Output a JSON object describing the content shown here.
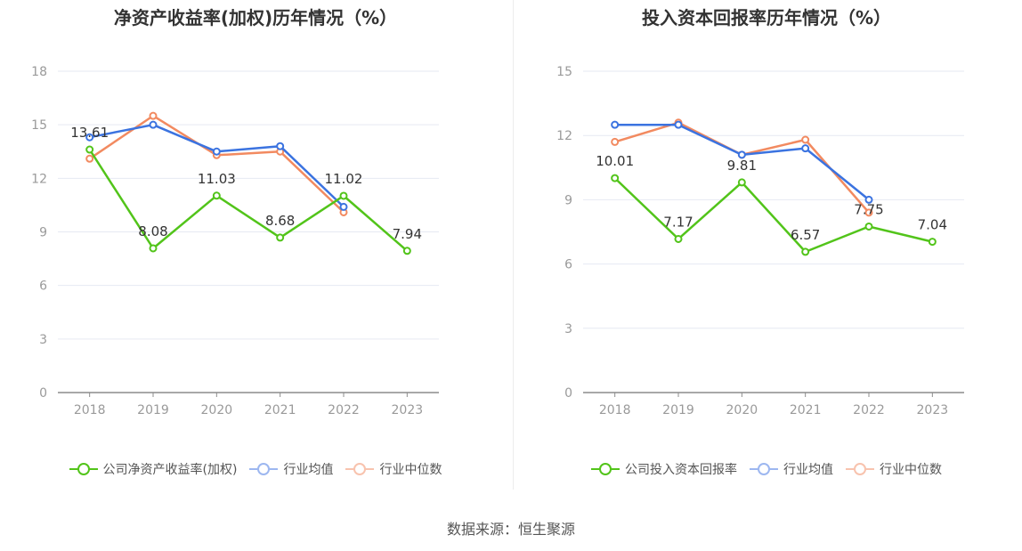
{
  "chart_data": [
    {
      "type": "line",
      "title": "净资产收益率(加权)历年情况（%）",
      "categories": [
        "2018",
        "2019",
        "2020",
        "2021",
        "2022",
        "2023"
      ],
      "ylim": [
        0,
        18
      ],
      "yticks": [
        0,
        3,
        6,
        9,
        12,
        15,
        18
      ],
      "grid": true,
      "legend_position": "bottom",
      "series": [
        {
          "name": "公司净资产收益率(加权)",
          "color": "#52c41a",
          "values": [
            13.61,
            8.08,
            11.03,
            8.68,
            11.02,
            7.94
          ],
          "labels": [
            "13.61",
            "8.08",
            "11.03",
            "8.68",
            "11.02",
            "7.94"
          ]
        },
        {
          "name": "行业均值",
          "color": "#3b73e0",
          "values": [
            14.3,
            15.0,
            13.5,
            13.8,
            10.4,
            null
          ]
        },
        {
          "name": "行业中位数",
          "color": "#f28a60",
          "values": [
            13.1,
            15.5,
            13.3,
            13.5,
            10.1,
            null
          ]
        }
      ]
    },
    {
      "type": "line",
      "title": "投入资本回报率历年情况（%）",
      "categories": [
        "2018",
        "2019",
        "2020",
        "2021",
        "2022",
        "2023"
      ],
      "ylim": [
        0,
        15
      ],
      "yticks": [
        0,
        3,
        6,
        9,
        12,
        15
      ],
      "grid": true,
      "legend_position": "bottom",
      "series": [
        {
          "name": "公司投入资本回报率",
          "color": "#52c41a",
          "values": [
            10.01,
            7.17,
            9.81,
            6.57,
            7.75,
            7.04
          ],
          "labels": [
            "10.01",
            "7.17",
            "9.81",
            "6.57",
            "7.75",
            "7.04"
          ]
        },
        {
          "name": "行业均值",
          "color": "#3b73e0",
          "values": [
            12.5,
            12.5,
            11.1,
            11.4,
            9.0,
            null
          ]
        },
        {
          "name": "行业中位数",
          "color": "#f28a60",
          "values": [
            11.7,
            12.6,
            11.1,
            11.8,
            8.4,
            null
          ]
        }
      ]
    }
  ],
  "source": "数据来源：恒生聚源"
}
